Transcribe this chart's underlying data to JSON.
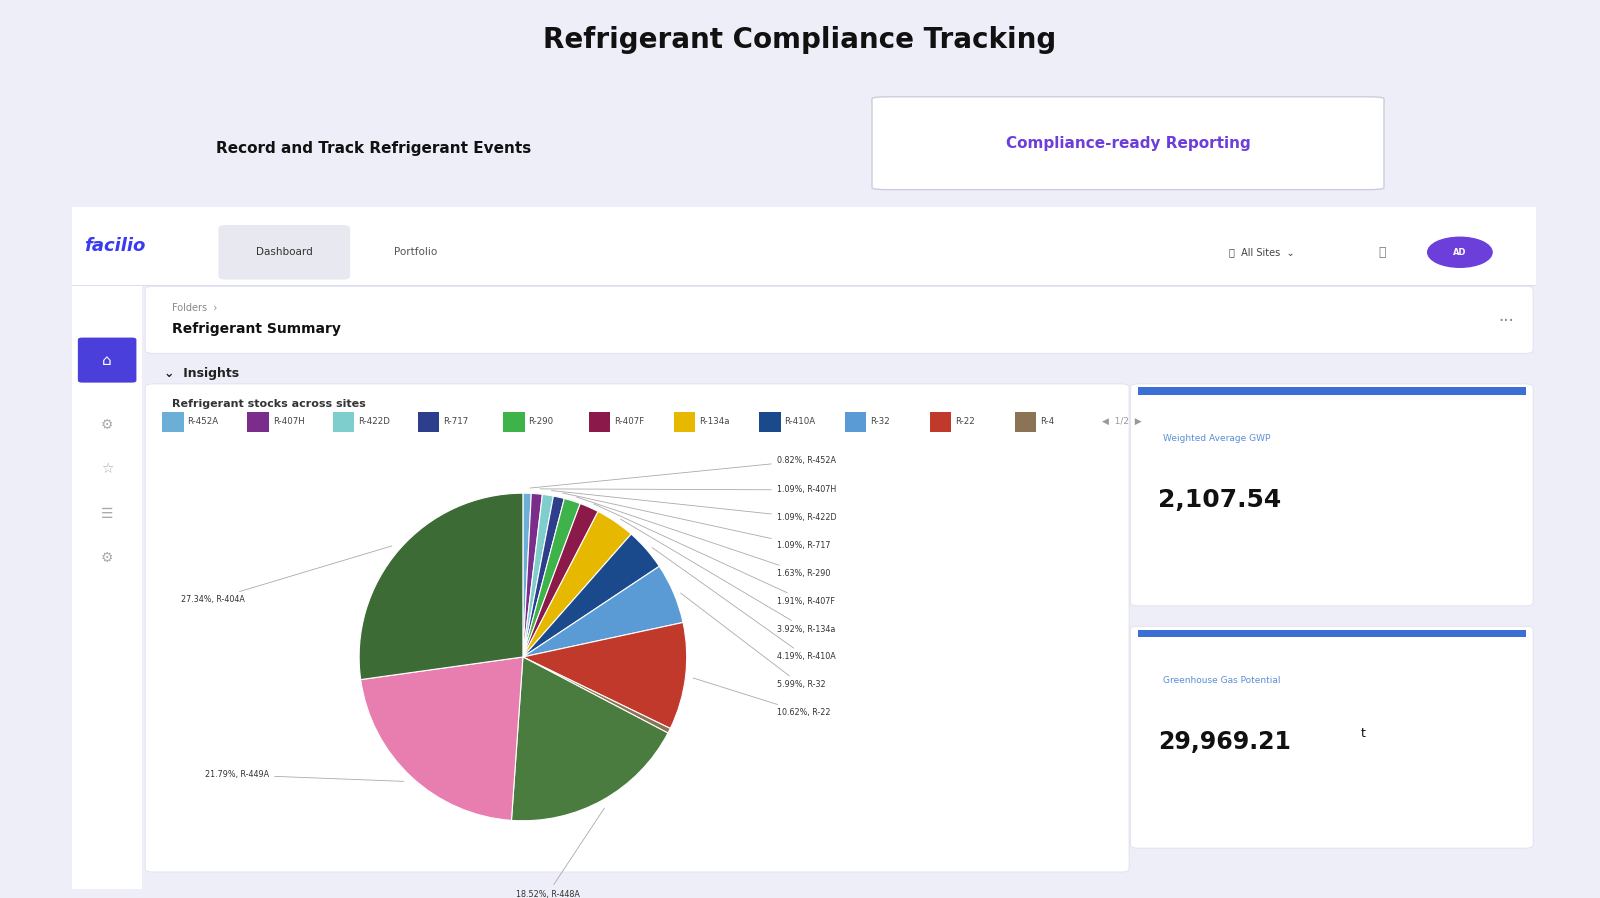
{
  "title": "Refrigerant Compliance Tracking",
  "subtitle_left": "Record and Track Refrigerant Events",
  "subtitle_right": "Compliance-ready Reporting",
  "bg_color": "#edeef8",
  "facilio_color": "#3a3af4",
  "page_title": "Refrigerant Summary",
  "breadcrumb_main": "Folders",
  "breadcrumb_sub": "Refrigerant Summary",
  "section_title": "Refrigerant stocks across sites",
  "pie_labels": [
    "R-452A",
    "R-407H",
    "R-422D",
    "R-717",
    "R-290",
    "R-407F",
    "R-134a",
    "R-410A",
    "R-32",
    "R-22",
    "R-4",
    "R-448A",
    "R-449A",
    "R-404A"
  ],
  "pie_values": [
    0.82,
    1.09,
    1.09,
    1.09,
    1.63,
    1.91,
    3.92,
    4.19,
    5.99,
    10.62,
    0.5,
    18.52,
    21.79,
    27.34
  ],
  "pie_colors": [
    "#6baed6",
    "#7b2d8b",
    "#7ecece",
    "#2c3e8c",
    "#3db34a",
    "#8b1a4a",
    "#e6b800",
    "#1a4a8c",
    "#5b9bd5",
    "#c0392b",
    "#8b7355",
    "#4a7c3f",
    "#e87db0",
    "#3d6b35"
  ],
  "right_ann_labels": [
    "0.82%, R-452A",
    "1.09%, R-407H",
    "1.09%, R-422D",
    "1.09%, R-717",
    "1.63%, R-290",
    "1.91%, R-407F",
    "3.92%, R-134a",
    "4.19%, R-410A",
    "5.99%, R-32",
    "10.62%, R-22"
  ],
  "bottom_ann": "18.52%, R-448A",
  "bottomleft_ann": "21.79%, R-449A",
  "left_ann": "27.34%, R-404A",
  "gwp_label": "Weighted Average GWP",
  "gwp_value": "2,107.54",
  "ggp_label": "Greenhouse Gas Potential",
  "ggp_value": "29,969.21",
  "ggp_unit": "t",
  "accent_blue": "#3b6fd4",
  "accent_purple": "#6c3fdb",
  "nav_tab_bg": "#e8e8f0",
  "sidebar_icon_color": "#4a3fdb"
}
